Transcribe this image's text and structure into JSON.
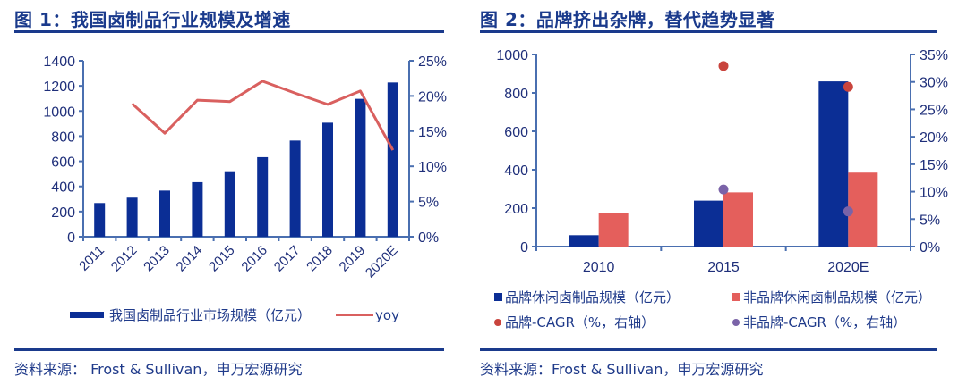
{
  "figure1": {
    "title": "图 1：我国卤制品行业规模及增速",
    "legend_bar": "我国卤制品行业市场规模（亿元）",
    "legend_line": "yoy",
    "source": "资料来源： Frost & Sullivan，申万宏源研究"
  },
  "figure2": {
    "title": "图 2：品牌挤出杂牌，替代趋势显著",
    "legend": [
      "品牌休闲卤制品规模（亿元）",
      "非品牌休闲卤制品规模（亿元）",
      "品牌-CAGR（%，右轴）",
      "非品牌-CAGR（%，右轴）"
    ],
    "source": "资料来源：Frost & Sullivan，申万宏源研究"
  },
  "colors": {
    "bar_blue": "#0b2e95",
    "line_red": "#d9605f",
    "bar_red": "#e45f5c",
    "dot_red": "#c9443d",
    "dot_purple": "#7a63a8",
    "axis": "#4a6fb0",
    "title_blue": "#1a3a8c"
  },
  "chart_data": [
    {
      "type": "bar+line",
      "title": "图 1：我国卤制品行业规模及增速",
      "categories": [
        "2011",
        "2012",
        "2013",
        "2014",
        "2015",
        "2016",
        "2017",
        "2018",
        "2019",
        "2020E"
      ],
      "series": [
        {
          "name": "我国卤制品行业市场规模（亿元）",
          "type": "bar",
          "axis": "left",
          "values": [
            268,
            311,
            367,
            434,
            521,
            633,
            765,
            907,
            1097,
            1227
          ]
        },
        {
          "name": "yoy",
          "type": "line",
          "axis": "right",
          "unit": "%",
          "values": [
            null,
            18.9,
            14.7,
            19.4,
            19.2,
            22.1,
            20.4,
            18.8,
            20.7,
            12.3
          ]
        }
      ],
      "ylim_left": [
        0,
        1400
      ],
      "yticks_left": [
        "0",
        "200",
        "400",
        "600",
        "800",
        "1000",
        "1200",
        "1400"
      ],
      "ylim_right": [
        0,
        25
      ],
      "yticks_right": [
        "0%",
        "5%",
        "10%",
        "15%",
        "20%",
        "25%"
      ],
      "grid": false,
      "legend_position": "bottom"
    },
    {
      "type": "bar+scatter",
      "title": "图 2：品牌挤出杂牌，替代趋势显著",
      "categories": [
        "2010",
        "2015",
        "2020E"
      ],
      "series": [
        {
          "name": "品牌休闲卤制品规模（亿元）",
          "type": "bar",
          "axis": "left",
          "values": [
            59,
            239,
            860
          ]
        },
        {
          "name": "非品牌休闲卤制品规模（亿元）",
          "type": "bar",
          "axis": "left",
          "values": [
            175,
            282,
            385
          ]
        },
        {
          "name": "品牌-CAGR（%，右轴）",
          "type": "scatter",
          "axis": "right",
          "unit": "%",
          "values": [
            null,
            32.9,
            29.1
          ]
        },
        {
          "name": "非品牌-CAGR（%，右轴）",
          "type": "scatter",
          "axis": "right",
          "unit": "%",
          "values": [
            null,
            10.4,
            6.4
          ]
        }
      ],
      "ylim_left": [
        0,
        1000
      ],
      "yticks_left": [
        "0",
        "200",
        "400",
        "600",
        "800",
        "1000"
      ],
      "ylim_right": [
        0,
        35
      ],
      "yticks_right": [
        "0%",
        "5%",
        "10%",
        "15%",
        "20%",
        "25%",
        "30%",
        "35%"
      ],
      "grid": false,
      "legend_position": "bottom"
    }
  ]
}
